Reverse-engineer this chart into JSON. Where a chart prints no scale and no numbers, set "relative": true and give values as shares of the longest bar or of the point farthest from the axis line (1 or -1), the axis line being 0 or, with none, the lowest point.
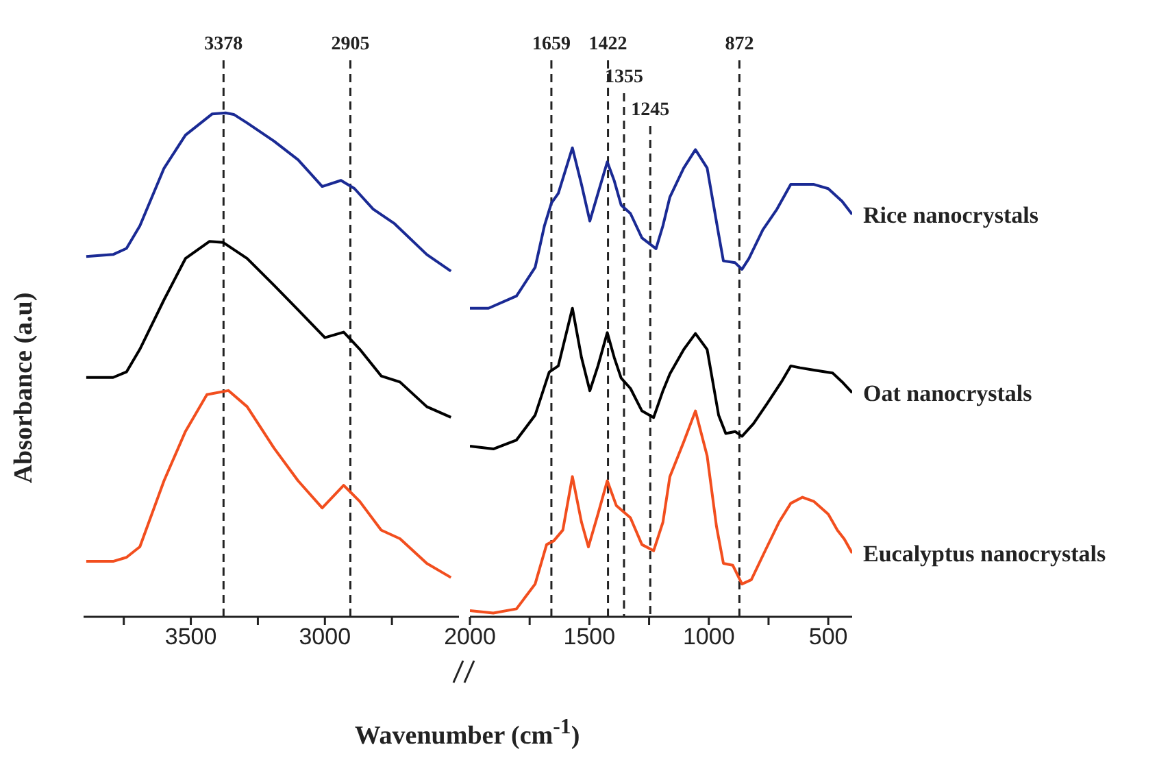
{
  "chart_data": [
    {
      "type": "line",
      "relative": true,
      "ylabel": "Absorbance (a.u)",
      "xlim": [
        3900,
        2500
      ],
      "xticks": [
        {
          "value": 3750,
          "label": null
        },
        3500,
        {
          "value": 3250,
          "label": null
        },
        3000,
        {
          "value": 2750,
          "label": null
        }
      ],
      "ref_lines": [
        {
          "axis": "x",
          "value": 3378,
          "label": "3378",
          "line_style": "dashed"
        },
        {
          "axis": "x",
          "value": 2905,
          "label": "2905",
          "line_style": "dashed"
        }
      ],
      "series": [
        {
          "color": "#1a2a94",
          "x": [
            3890,
            3790,
            3740,
            3690,
            3600,
            3520,
            3420,
            3370,
            3340,
            3290,
            3190,
            3100,
            3010,
            2940,
            2890,
            2820,
            2740,
            2620,
            2530
          ],
          "values": [
            0.715,
            0.719,
            0.731,
            0.776,
            0.89,
            0.956,
            0.998,
            1.0,
            0.997,
            0.98,
            0.944,
            0.907,
            0.854,
            0.866,
            0.85,
            0.809,
            0.78,
            0.719,
            0.686
          ]
        },
        {
          "color": "#000000",
          "x": [
            3890,
            3790,
            3740,
            3690,
            3600,
            3520,
            3430,
            3380,
            3290,
            3190,
            3100,
            3000,
            2930,
            2870,
            2790,
            2720,
            2620,
            2530
          ],
          "values": [
            0.475,
            0.475,
            0.486,
            0.531,
            0.629,
            0.711,
            0.745,
            0.743,
            0.711,
            0.658,
            0.609,
            0.554,
            0.565,
            0.531,
            0.478,
            0.466,
            0.417,
            0.396
          ]
        },
        {
          "color": "#f24e1e",
          "x": [
            3890,
            3790,
            3740,
            3690,
            3600,
            3520,
            3440,
            3360,
            3290,
            3190,
            3100,
            3010,
            2930,
            2870,
            2790,
            2720,
            2620,
            2530
          ],
          "values": [
            0.11,
            0.11,
            0.118,
            0.139,
            0.27,
            0.368,
            0.441,
            0.449,
            0.417,
            0.335,
            0.27,
            0.216,
            0.261,
            0.229,
            0.172,
            0.155,
            0.106,
            0.078
          ]
        }
      ]
    },
    {
      "type": "line",
      "relative": true,
      "xlabel": "Wavenumber (cm$^{-1}$)",
      "xlim": [
        2000,
        400
      ],
      "xticks": [
        2000,
        {
          "value": 1750,
          "label": null
        },
        1500,
        {
          "value": 1250,
          "label": null
        },
        1000,
        {
          "value": 750,
          "label": null
        },
        500
      ],
      "ref_lines": [
        {
          "axis": "x",
          "value": 1659,
          "label": "1659",
          "line_style": "dashed"
        },
        {
          "axis": "x",
          "value": 1422,
          "label": "1422",
          "line_style": "dashed"
        },
        {
          "axis": "x",
          "value": 1355,
          "label": "1355",
          "line_style": "dashed"
        },
        {
          "axis": "x",
          "value": 1245,
          "label": "1245",
          "line_style": "dashed"
        },
        {
          "axis": "x",
          "value": 872,
          "label": "872",
          "line_style": "dashed"
        }
      ],
      "series": [
        {
          "name": "Rice nanocrystals",
          "color": "#1a2a94",
          "x": [
            2000,
            1922,
            1805,
            1727,
            1688,
            1659,
            1630,
            1571,
            1533,
            1498,
            1464,
            1425,
            1396,
            1367,
            1328,
            1280,
            1221,
            1192,
            1163,
            1105,
            1056,
            1007,
            959,
            939,
            890,
            861,
            832,
            774,
            715,
            657,
            618,
            560,
            500,
            442,
            400
          ],
          "values": [
            0.658,
            0.658,
            0.684,
            0.745,
            0.834,
            0.882,
            0.903,
            1.0,
            0.922,
            0.844,
            0.903,
            0.97,
            0.93,
            0.878,
            0.86,
            0.808,
            0.785,
            0.834,
            0.895,
            0.957,
            0.996,
            0.957,
            0.816,
            0.759,
            0.755,
            0.741,
            0.764,
            0.825,
            0.869,
            0.922,
            0.922,
            0.922,
            0.913,
            0.886,
            0.858
          ]
        },
        {
          "name": "Oat nanocrystals",
          "color": "#000000",
          "x": [
            2000,
            1902,
            1805,
            1727,
            1668,
            1630,
            1571,
            1533,
            1498,
            1464,
            1425,
            1396,
            1367,
            1328,
            1280,
            1231,
            1192,
            1163,
            1105,
            1056,
            1007,
            959,
            929,
            890,
            861,
            813,
            754,
            696,
            657,
            618,
            560,
            482,
            442,
            400
          ],
          "values": [
            0.364,
            0.358,
            0.377,
            0.43,
            0.522,
            0.535,
            0.658,
            0.553,
            0.482,
            0.535,
            0.606,
            0.553,
            0.509,
            0.487,
            0.439,
            0.425,
            0.482,
            0.518,
            0.57,
            0.604,
            0.57,
            0.43,
            0.391,
            0.395,
            0.385,
            0.412,
            0.456,
            0.501,
            0.535,
            0.531,
            0.526,
            0.52,
            0.501,
            0.478
          ]
        },
        {
          "name": "Eucalyptus nanocrystals",
          "color": "#f24e1e",
          "x": [
            2000,
            1902,
            1805,
            1727,
            1679,
            1649,
            1611,
            1571,
            1533,
            1504,
            1464,
            1425,
            1387,
            1328,
            1280,
            1231,
            1192,
            1163,
            1105,
            1056,
            1007,
            968,
            939,
            900,
            861,
            822,
            764,
            706,
            657,
            608,
            560,
            500,
            462,
            433,
            400
          ],
          "values": [
            0.013,
            0.008,
            0.017,
            0.07,
            0.154,
            0.162,
            0.185,
            0.299,
            0.202,
            0.149,
            0.219,
            0.29,
            0.237,
            0.211,
            0.154,
            0.141,
            0.202,
            0.299,
            0.373,
            0.439,
            0.343,
            0.193,
            0.114,
            0.11,
            0.07,
            0.079,
            0.141,
            0.202,
            0.242,
            0.255,
            0.246,
            0.219,
            0.185,
            0.166,
            0.136
          ]
        }
      ]
    }
  ]
}
